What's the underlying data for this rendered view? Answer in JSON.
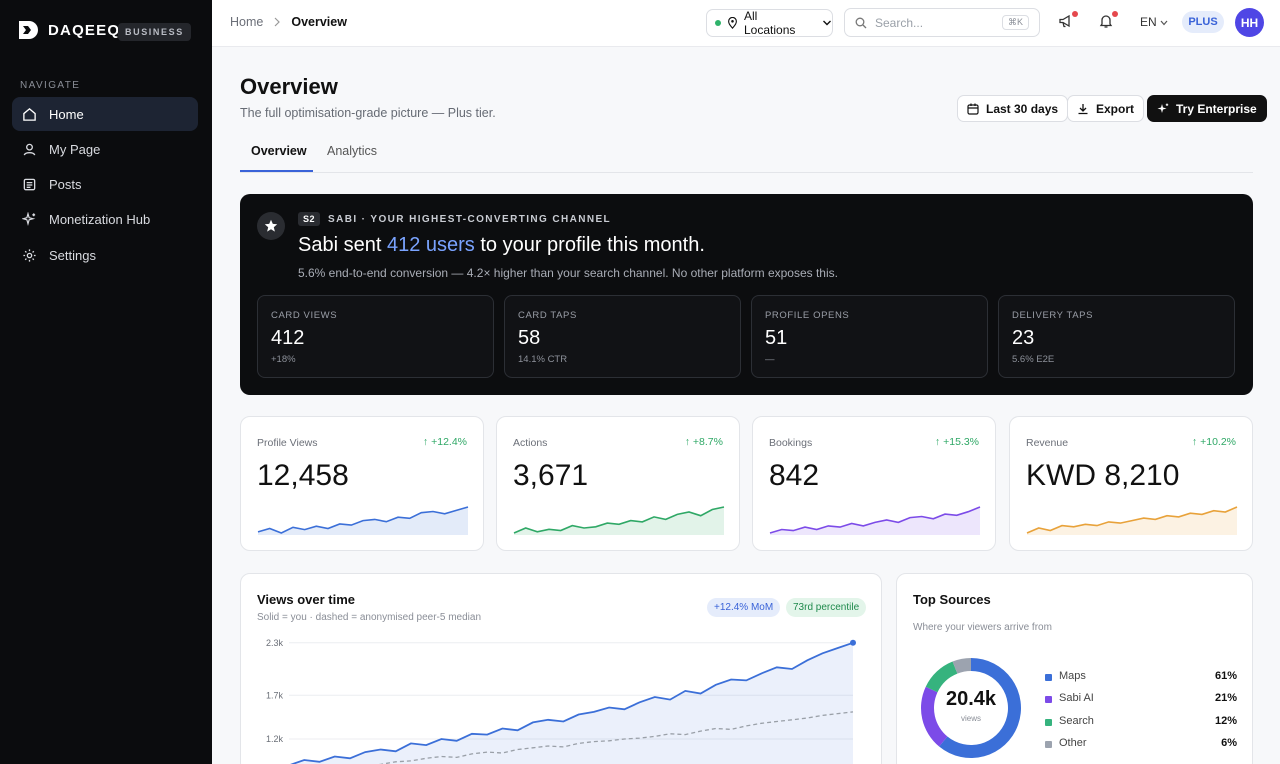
{
  "brand": {
    "name": "DAQEEQ",
    "badge": "BUSINESS"
  },
  "nav": {
    "heading": "NAVIGATE",
    "items": [
      {
        "label": "Home",
        "icon": "home-icon"
      },
      {
        "label": "My Page",
        "icon": "user-icon"
      },
      {
        "label": "Posts",
        "icon": "posts-icon"
      },
      {
        "label": "Monetization Hub",
        "icon": "sparkle-icon"
      },
      {
        "label": "Settings",
        "icon": "gear-icon"
      }
    ]
  },
  "topbar": {
    "breadcrumb": {
      "root": "Home",
      "current": "Overview"
    },
    "location": "All Locations",
    "search_placeholder": "Search...",
    "search_shortcut": "⌘K",
    "language": "EN",
    "plan": "PLUS",
    "avatar_initials": "HH"
  },
  "header": {
    "title": "Overview",
    "subtitle": "The full optimisation-grade picture — Plus tier.",
    "range_label": "Last 30 days",
    "export_label": "Export",
    "enterprise_label": "Try Enterprise"
  },
  "tabs": [
    {
      "label": "Overview"
    },
    {
      "label": "Analytics"
    }
  ],
  "hero": {
    "tag_badge": "S2",
    "tag": "SABI · YOUR HIGHEST-CONVERTING CHANNEL",
    "headline_pre": "Sabi sent ",
    "headline_highlight": "412 users",
    "headline_post": " to your profile this month.",
    "description": "5.6% end-to-end conversion — 4.2× higher than your search channel. No other platform exposes this.",
    "stats": [
      {
        "label": "CARD VIEWS",
        "value": "412",
        "sub": "+18%"
      },
      {
        "label": "CARD TAPS",
        "value": "58",
        "sub": "14.1% CTR"
      },
      {
        "label": "PROFILE OPENS",
        "value": "51",
        "sub": "—"
      },
      {
        "label": "DELIVERY TAPS",
        "value": "23",
        "sub": "5.6% E2E"
      }
    ]
  },
  "metrics": [
    {
      "label": "Profile Views",
      "change": "+12.4%",
      "value": "12,458",
      "color": "#3b6fd8",
      "spark": [
        3,
        6,
        2,
        7,
        5,
        8,
        6,
        10,
        9,
        13,
        14,
        12,
        16,
        15,
        20,
        21,
        19,
        22,
        25
      ]
    },
    {
      "label": "Actions",
      "change": "+8.7%",
      "value": "3,671",
      "color": "#2fa866",
      "spark": [
        3,
        7,
        4,
        6,
        5,
        9,
        7,
        8,
        11,
        10,
        13,
        12,
        16,
        14,
        18,
        20,
        17,
        22,
        24
      ]
    },
    {
      "label": "Bookings",
      "change": "+15.3%",
      "value": "842",
      "color": "#7c4be8",
      "spark": [
        3,
        6,
        5,
        8,
        6,
        9,
        8,
        11,
        9,
        12,
        14,
        12,
        16,
        17,
        15,
        19,
        18,
        21,
        25
      ]
    },
    {
      "label": "Revenue",
      "change": "+10.2%",
      "value": "KWD 8,210",
      "color": "#e8a23a",
      "spark": [
        3,
        7,
        5,
        9,
        8,
        10,
        9,
        12,
        11,
        13,
        15,
        14,
        17,
        16,
        19,
        18,
        21,
        20,
        24
      ]
    }
  ],
  "views_chart": {
    "title": "Views over time",
    "subtitle": "Solid = you · dashed = anonymised peer-5 median",
    "badge_mom": "+12.4% MoM",
    "badge_percentile": "73rd percentile",
    "chart_data": {
      "type": "line",
      "yticks": [
        "2.3k",
        "1.7k",
        "1.2k"
      ],
      "ylim": [
        800,
        2400
      ],
      "series": [
        {
          "values": [
            900,
            960,
            940,
            1000,
            980,
            1050,
            1080,
            1060,
            1150,
            1130,
            1200,
            1180,
            1260,
            1250,
            1320,
            1300,
            1390,
            1420,
            1400,
            1480,
            1510,
            1560,
            1540,
            1620,
            1680,
            1650,
            1750,
            1720,
            1820,
            1880,
            1870,
            1950,
            2020,
            2000,
            2100,
            2180,
            2240,
            2300
          ]
        },
        {
          "values": [
            780,
            820,
            840,
            850,
            880,
            900,
            910,
            940,
            950,
            980,
            1000,
            990,
            1030,
            1050,
            1040,
            1080,
            1100,
            1120,
            1110,
            1150,
            1170,
            1180,
            1200,
            1210,
            1230,
            1260,
            1250,
            1290,
            1320,
            1310,
            1350,
            1380,
            1400,
            1420,
            1440,
            1470,
            1490,
            1510
          ]
        }
      ]
    }
  },
  "sources": {
    "title": "Top Sources",
    "subtitle": "Where your viewers arrive from",
    "total": "20.4k",
    "total_unit": "views",
    "chart_data": {
      "type": "pie",
      "labels": [
        "Maps",
        "Sabi AI",
        "Search",
        "Other"
      ],
      "values": [
        61,
        21,
        12,
        6
      ],
      "percent_labels": [
        "61%",
        "21%",
        "12%",
        "6%"
      ],
      "colors": [
        "#3b6fd8",
        "#7c4be8",
        "#36b37e",
        "#9ca3af"
      ]
    }
  }
}
